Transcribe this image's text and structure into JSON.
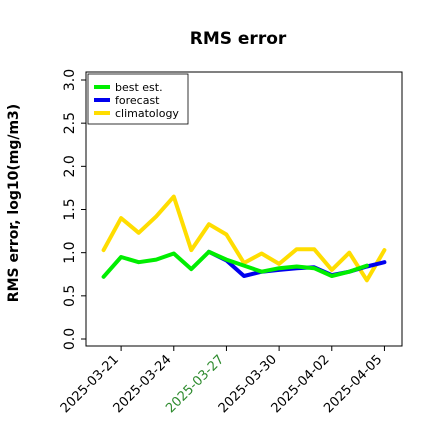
{
  "chart_data": {
    "type": "line",
    "title": "RMS error",
    "ylabel": "RMS error, log10(mg/m3)",
    "xlabel": "",
    "ylim": [
      0.0,
      3.0
    ],
    "y_ticks": [
      "0.0",
      "0.5",
      "1.0",
      "1.5",
      "2.0",
      "2.5",
      "3.0"
    ],
    "x_range": [
      "2025-03-19",
      "2025-04-06"
    ],
    "x_tick_dates": [
      "2025-03-21",
      "2025-03-24",
      "2025-03-27",
      "2025-03-30",
      "2025-04-02",
      "2025-04-05"
    ],
    "x_ticks": [
      {
        "label": "2025-03-21",
        "color": "#000000"
      },
      {
        "label": "2025-03-24",
        "color": "#000000"
      },
      {
        "label": "2025-03-27",
        "color": "#2e8b2e"
      },
      {
        "label": "2025-03-30",
        "color": "#000000"
      },
      {
        "label": "2025-04-02",
        "color": "#000000"
      },
      {
        "label": "2025-04-05",
        "color": "#000000"
      }
    ],
    "grid": false,
    "legend_position": "top-left",
    "series": [
      {
        "name": "climatology",
        "color": "#ffdd00",
        "x": [
          "2025-03-20",
          "2025-03-21",
          "2025-03-22",
          "2025-03-23",
          "2025-03-24",
          "2025-03-25",
          "2025-03-26",
          "2025-03-27",
          "2025-03-28",
          "2025-03-29",
          "2025-03-30",
          "2025-03-31",
          "2025-04-01",
          "2025-04-02",
          "2025-04-03",
          "2025-04-04",
          "2025-04-05"
        ],
        "y": [
          1.03,
          1.4,
          1.23,
          1.42,
          1.65,
          1.03,
          1.33,
          1.21,
          0.88,
          0.99,
          0.87,
          1.04,
          1.04,
          0.8,
          1.0,
          0.68,
          1.03
        ]
      },
      {
        "name": "forecast",
        "color": "#0000ee",
        "x": [
          "2025-03-26",
          "2025-03-27",
          "2025-03-28",
          "2025-03-29",
          "2025-03-30",
          "2025-03-31",
          "2025-04-01",
          "2025-04-02",
          "2025-04-03",
          "2025-04-04",
          "2025-04-05"
        ],
        "y": [
          1.01,
          0.91,
          0.73,
          0.78,
          0.8,
          0.82,
          0.83,
          0.74,
          0.78,
          0.84,
          0.89
        ]
      },
      {
        "name": "best est.",
        "color": "#00ee00",
        "x": [
          "2025-03-20",
          "2025-03-21",
          "2025-03-22",
          "2025-03-23",
          "2025-03-24",
          "2025-03-25",
          "2025-03-26",
          "2025-03-27",
          "2025-03-28",
          "2025-03-29",
          "2025-03-30",
          "2025-03-31",
          "2025-04-01",
          "2025-04-02",
          "2025-04-03",
          "2025-04-04"
        ],
        "y": [
          0.72,
          0.95,
          0.89,
          0.92,
          0.99,
          0.81,
          1.01,
          0.92,
          0.85,
          0.78,
          0.82,
          0.84,
          0.82,
          0.73,
          0.78,
          0.85
        ]
      }
    ],
    "legend_order": [
      "best est.",
      "forecast",
      "climatology"
    ]
  }
}
